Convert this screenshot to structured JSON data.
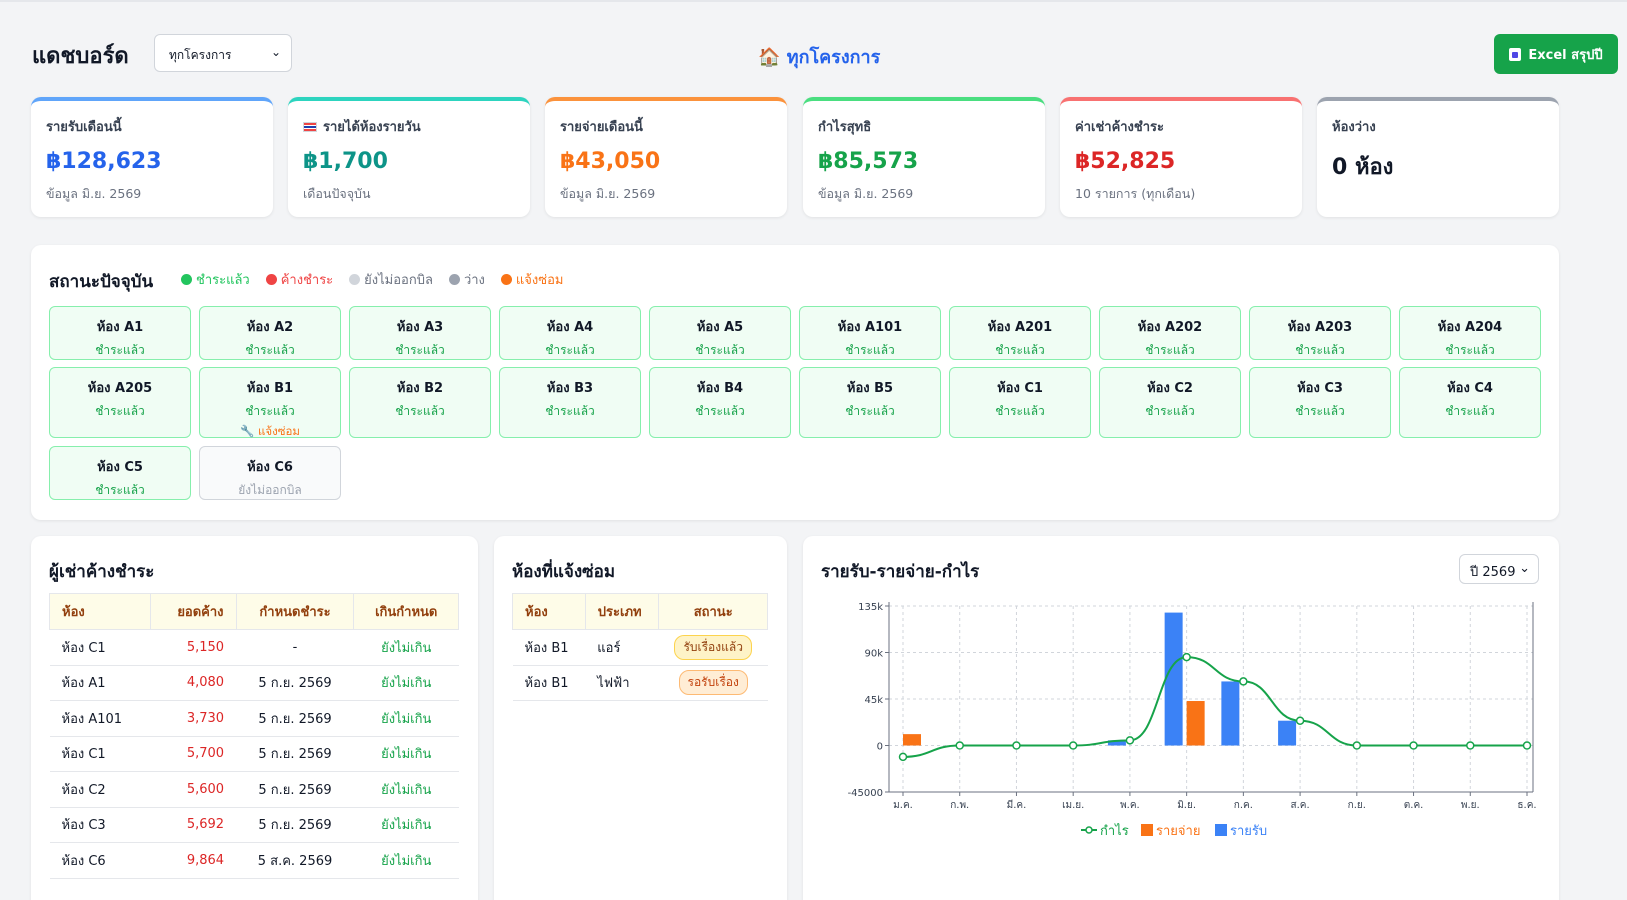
{
  "header": {
    "title": "แดชบอร์ด",
    "project_select": "ทุกโครงการ",
    "center_icon": "🏠",
    "center_title": "ทุกโครงการ",
    "excel_label": "Excel สรุปปี"
  },
  "cards": [
    {
      "label": "รายรับเดือนนี้",
      "value": "฿128,623",
      "sub": "ข้อมูล มิ.ย. 2569",
      "color": "#2563eb",
      "top": "#60a5fa"
    },
    {
      "label": "รายได้ห้องรายวัน",
      "value": "฿1,700",
      "sub": "เดือนปัจจุบัน",
      "color": "#0d9488",
      "top": "#2dd4bf"
    },
    {
      "label": "รายจ่ายเดือนนี้",
      "value": "฿43,050",
      "sub": "ข้อมูล มิ.ย. 2569",
      "color": "#f97316",
      "top": "#fb923c"
    },
    {
      "label": "กำไรสุทธิ",
      "value": "฿85,573",
      "sub": "ข้อมูล มิ.ย. 2569",
      "color": "#16a34a",
      "top": "#4ade80"
    },
    {
      "label": "ค่าเช่าค้างชำระ",
      "value": "฿52,825",
      "sub": "10 รายการ (ทุกเดือน)",
      "color": "#dc2626",
      "top": "#f87171"
    },
    {
      "label": "ห้องว่าง",
      "value": "0 ห้อง",
      "sub": "",
      "color": "#111827",
      "top": "#9ca3af"
    }
  ],
  "status": {
    "title": "สถานะปัจจุบัน",
    "legend": [
      {
        "label": "ชำระแล้ว",
        "color": "#22c55e"
      },
      {
        "label": "ค้างชำระ",
        "color": "#ef4444"
      },
      {
        "label": "ยังไม่ออกบิล",
        "color": "#d1d5db"
      },
      {
        "label": "ว่าง",
        "color": "#9ca3af"
      },
      {
        "label": "แจ้งซ่อม",
        "color": "#f97316"
      }
    ],
    "rooms": [
      {
        "name": "ห้อง A1",
        "status": "ชำระแล้ว"
      },
      {
        "name": "ห้อง A2",
        "status": "ชำระแล้ว"
      },
      {
        "name": "ห้อง A3",
        "status": "ชำระแล้ว"
      },
      {
        "name": "ห้อง A4",
        "status": "ชำระแล้ว"
      },
      {
        "name": "ห้อง A5",
        "status": "ชำระแล้ว"
      },
      {
        "name": "ห้อง A101",
        "status": "ชำระแล้ว"
      },
      {
        "name": "ห้อง A201",
        "status": "ชำระแล้ว"
      },
      {
        "name": "ห้อง A202",
        "status": "ชำระแล้ว"
      },
      {
        "name": "ห้อง A203",
        "status": "ชำระแล้ว"
      },
      {
        "name": "ห้อง A204",
        "status": "ชำระแล้ว"
      },
      {
        "name": "ห้อง A205",
        "status": "ชำระแล้ว"
      },
      {
        "name": "ห้อง B1",
        "status": "ชำระแล้ว",
        "repair": "🔧 แจ้งซ่อม"
      },
      {
        "name": "ห้อง B2",
        "status": "ชำระแล้ว"
      },
      {
        "name": "ห้อง B3",
        "status": "ชำระแล้ว"
      },
      {
        "name": "ห้อง B4",
        "status": "ชำระแล้ว"
      },
      {
        "name": "ห้อง B5",
        "status": "ชำระแล้ว"
      },
      {
        "name": "ห้อง C1",
        "status": "ชำระแล้ว"
      },
      {
        "name": "ห้อง C2",
        "status": "ชำระแล้ว"
      },
      {
        "name": "ห้อง C3",
        "status": "ชำระแล้ว"
      },
      {
        "name": "ห้อง C4",
        "status": "ชำระแล้ว"
      },
      {
        "name": "ห้อง C5",
        "status": "ชำระแล้ว"
      },
      {
        "name": "ห้อง C6",
        "status": "ยังไม่ออกบิล",
        "unbilled": true
      }
    ]
  },
  "overdue": {
    "title": "ผู้เช่าค้างชำระ",
    "columns": [
      "ห้อง",
      "ยอดค้าง",
      "กำหนดชำระ",
      "เกินกำหนด"
    ],
    "rows": [
      [
        "ห้อง C1",
        "5,150",
        "-",
        "ยังไม่เกิน"
      ],
      [
        "ห้อง A1",
        "4,080",
        "5 ก.ย. 2569",
        "ยังไม่เกิน"
      ],
      [
        "ห้อง A101",
        "3,730",
        "5 ก.ย. 2569",
        "ยังไม่เกิน"
      ],
      [
        "ห้อง C1",
        "5,700",
        "5 ก.ย. 2569",
        "ยังไม่เกิน"
      ],
      [
        "ห้อง C2",
        "5,600",
        "5 ก.ย. 2569",
        "ยังไม่เกิน"
      ],
      [
        "ห้อง C3",
        "5,692",
        "5 ก.ย. 2569",
        "ยังไม่เกิน"
      ],
      [
        "ห้อง C6",
        "9,864",
        "5 ส.ค. 2569",
        "ยังไม่เกิน"
      ]
    ]
  },
  "repairs": {
    "title": "ห้องที่แจ้งซ่อม",
    "columns": [
      "ห้อง",
      "ประเภท",
      "สถานะ"
    ],
    "rows": [
      [
        "ห้อง B1",
        "แอร์",
        "รับเรื่องแล้ว"
      ],
      [
        "ห้อง B1",
        "ไฟฟ้า",
        "รอรับเรื่อง"
      ]
    ]
  },
  "chart_panel": {
    "title": "รายรับ-รายจ่าย-กำไร",
    "year_select": "ปี 2569"
  },
  "chart_data": {
    "type": "bar",
    "categories": [
      "ม.ค.",
      "ก.พ.",
      "มี.ค.",
      "เม.ย.",
      "พ.ค.",
      "มิ.ย.",
      "ก.ค.",
      "ส.ค.",
      "ก.ย.",
      "ต.ค.",
      "พ.ย.",
      "ธ.ค."
    ],
    "yticks": [
      "135k",
      "90k",
      "45k",
      "0",
      "-45000"
    ],
    "ylim": [
      -45000,
      135000
    ],
    "series": [
      {
        "name": "รายรับ",
        "type": "bar",
        "color": "#3b82f6",
        "values": [
          0,
          0,
          0,
          0,
          5000,
          128623,
          62000,
          24000,
          0,
          0,
          0,
          0
        ]
      },
      {
        "name": "รายจ่าย",
        "type": "bar",
        "color": "#f97316",
        "values": [
          11000,
          0,
          0,
          0,
          0,
          43050,
          0,
          0,
          0,
          0,
          0,
          0
        ]
      },
      {
        "name": "กำไร",
        "type": "line",
        "color": "#16a34a",
        "values": [
          -11000,
          0,
          0,
          0,
          5000,
          85573,
          62000,
          24000,
          0,
          0,
          0,
          0
        ]
      }
    ],
    "legend": [
      "กำไร",
      "รายจ่าย",
      "รายรับ"
    ],
    "grid": true
  }
}
